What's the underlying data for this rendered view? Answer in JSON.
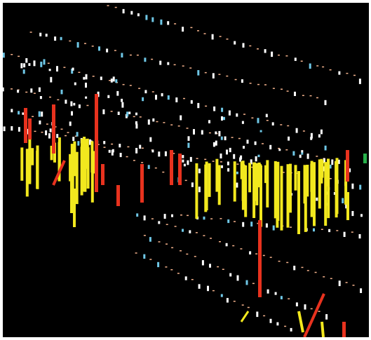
{
  "image": {
    "background": "#000000",
    "border": "#ffffff",
    "palette": {
      "yellow": "#f2e81e",
      "red": "#e8321e",
      "white": "#ffffff",
      "peach": "#f4b28c",
      "cyan": "#6fc7e6",
      "green": "#27b04a"
    }
  }
}
